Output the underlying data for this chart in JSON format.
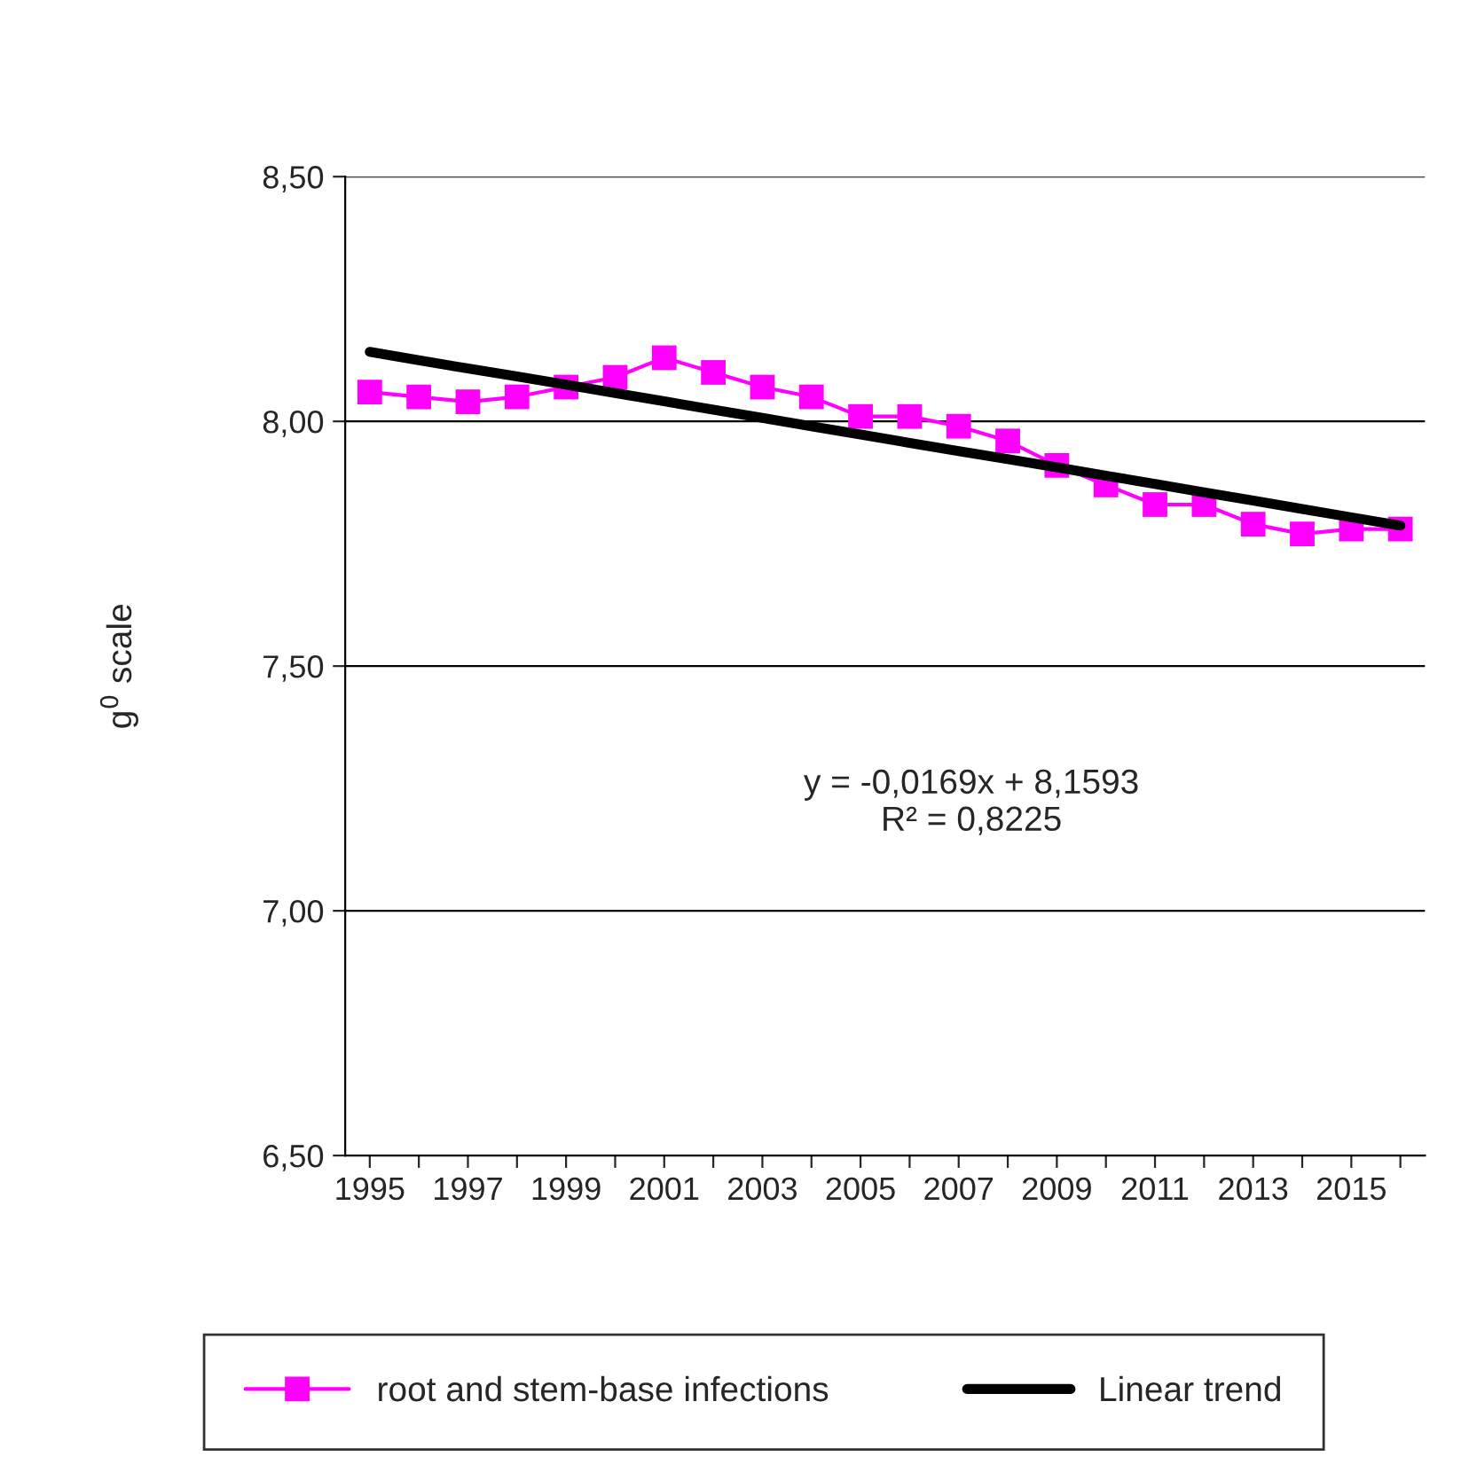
{
  "chart_data": {
    "type": "line",
    "ylabel": "g$^{0}$ scale",
    "categories": [
      "1995",
      null,
      "1997",
      null,
      "1999",
      null,
      "2001",
      null,
      "2003",
      null,
      "2005",
      null,
      "2007",
      null,
      "2009",
      null,
      "2011",
      null,
      "2013",
      null,
      "2015",
      null
    ],
    "series": [
      {
        "name": "root and stem-base infections",
        "color": "#ff00ff",
        "marker": "square",
        "values": [
          8.06,
          8.05,
          8.04,
          8.05,
          8.07,
          8.09,
          8.13,
          8.1,
          8.07,
          8.05,
          8.01,
          8.01,
          7.99,
          7.96,
          7.91,
          7.87,
          7.83,
          7.83,
          7.79,
          7.77,
          7.78,
          7.78
        ]
      },
      {
        "name": "Linear trend",
        "color": "#000000",
        "marker": "none",
        "values": [
          8.142,
          8.125,
          8.108,
          8.092,
          8.075,
          8.058,
          8.041,
          8.024,
          8.007,
          7.99,
          7.973,
          7.956,
          7.939,
          7.923,
          7.906,
          7.889,
          7.872,
          7.855,
          7.838,
          7.821,
          7.804,
          7.787
        ]
      }
    ],
    "ylim": [
      6.5,
      8.5
    ],
    "yticks": [
      {
        "value": 6.5,
        "label": "6,50"
      },
      {
        "value": 7.0,
        "label": "7,00"
      },
      {
        "value": 7.5,
        "label": "7,50"
      },
      {
        "value": 8.0,
        "label": "8,00"
      },
      {
        "value": 8.5,
        "label": "8,50"
      }
    ],
    "annotations": [
      "y = -0,0169x + 8,1593\nR² = 0,8225"
    ],
    "grid": "y",
    "legend": "bottom"
  }
}
